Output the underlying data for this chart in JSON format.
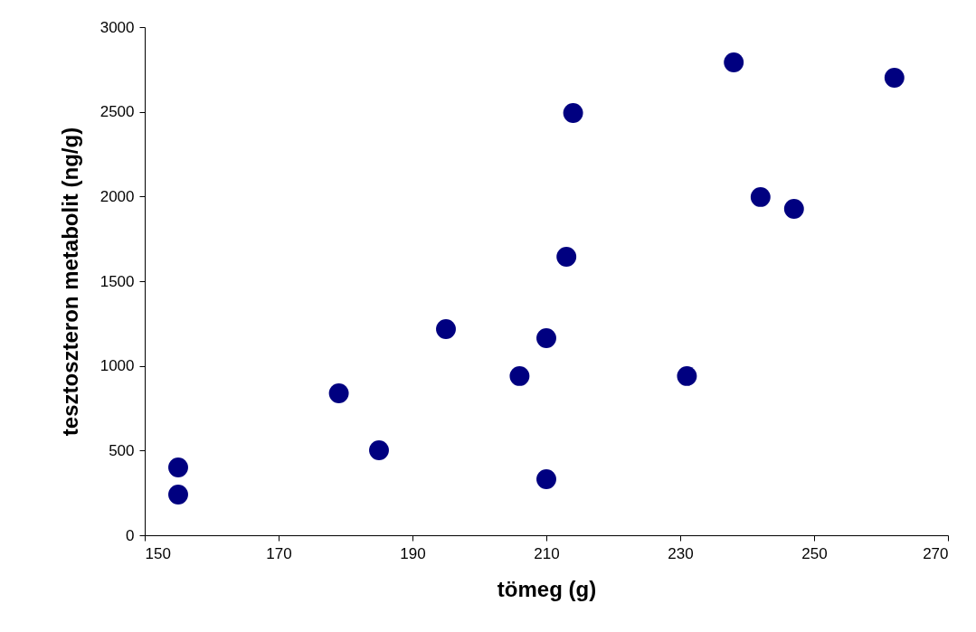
{
  "chart_data": {
    "type": "scatter",
    "xlabel": "tömeg (g)",
    "ylabel": "tesztoszteron metabolit (ng/g)",
    "x": [
      155,
      155,
      179,
      185,
      195,
      206,
      210,
      210,
      213,
      214,
      231,
      238,
      242,
      247,
      262
    ],
    "series": [
      {
        "color": "#000080",
        "values": [
          400,
          240,
          838,
          502,
          1217,
          940,
          1164,
          331,
          1644,
          2493,
          940,
          2792,
          1997,
          1927,
          2701
        ]
      }
    ],
    "xlim": [
      150,
      270
    ],
    "xticks": [
      150,
      170,
      190,
      210,
      230,
      250,
      270
    ],
    "ylim": [
      0,
      3000
    ],
    "yticks": [
      0,
      500,
      1000,
      1500,
      2000,
      2500,
      3000
    ],
    "grid": false,
    "marker": "circle"
  }
}
